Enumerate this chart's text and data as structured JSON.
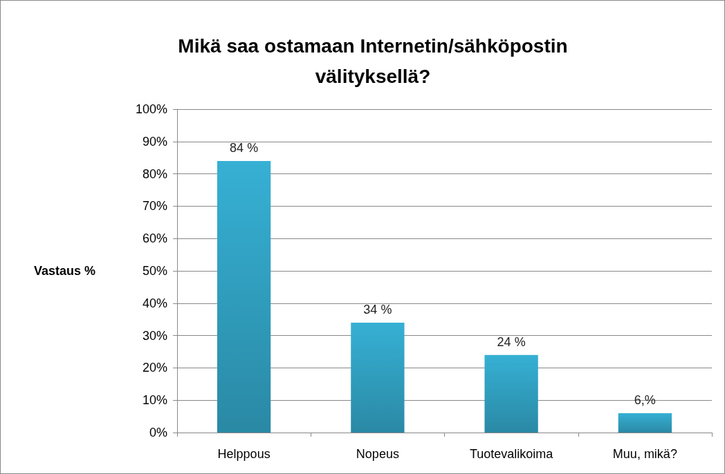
{
  "chart_data": {
    "type": "bar",
    "title": "Mikä saa ostamaan Internetin/sähköpostin\nvälityksellä?",
    "ylabel": "Vastaus %",
    "categories": [
      "Helppous",
      "Nopeus",
      "Tuotevalikoima",
      "Muu, mikä?"
    ],
    "values": [
      84,
      34,
      24,
      6
    ],
    "value_labels": [
      "84 %",
      "34 %",
      "24 %",
      "6,%"
    ],
    "color": "#36b0d4",
    "ylim": [
      0,
      100
    ],
    "yticks": [
      {
        "value": 0,
        "label": "0%"
      },
      {
        "value": 10,
        "label": "10%"
      },
      {
        "value": 20,
        "label": "20%"
      },
      {
        "value": 30,
        "label": "30%"
      },
      {
        "value": 40,
        "label": "40%"
      },
      {
        "value": 50,
        "label": "50%"
      },
      {
        "value": 60,
        "label": "60%"
      },
      {
        "value": 70,
        "label": "70%"
      },
      {
        "value": 80,
        "label": "80%"
      },
      {
        "value": 90,
        "label": "90%"
      },
      {
        "value": 100,
        "label": "100%"
      }
    ],
    "grid": "y"
  }
}
